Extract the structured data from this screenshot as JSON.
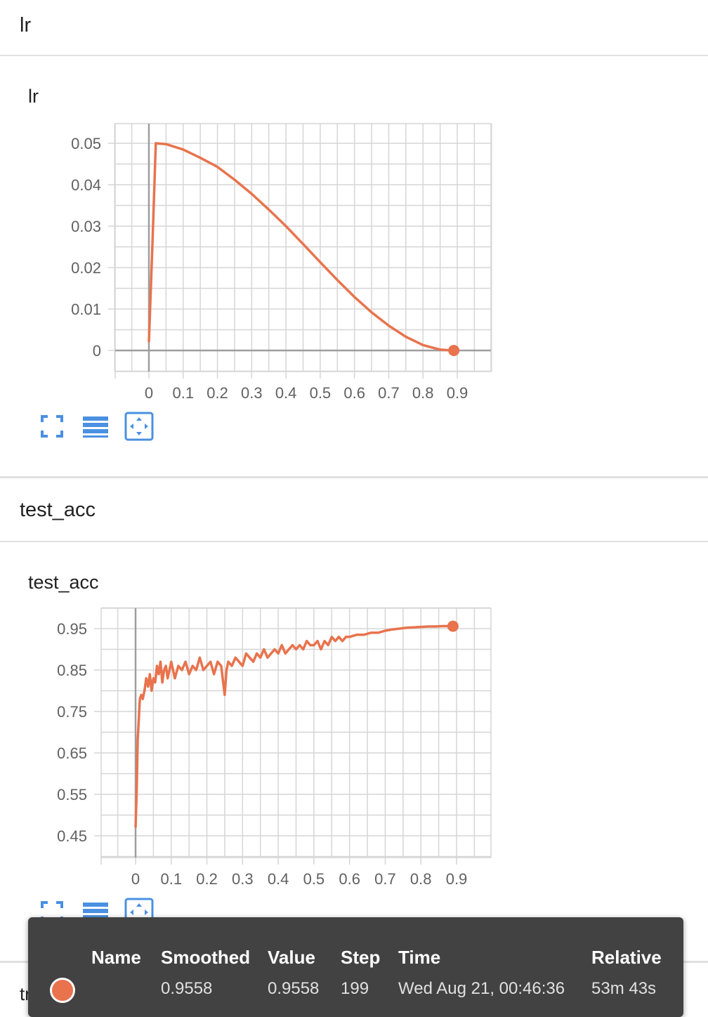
{
  "sections": [
    {
      "header": "lr"
    },
    {
      "header": "test_acc"
    }
  ],
  "next_section_header": "train_acc",
  "colors": {
    "series": "#e8734d",
    "icon": "#4a90e2",
    "grid": "#d6d6d6",
    "axis": "#9e9e9e",
    "tooltip_bg": "#424242"
  },
  "chart_data": [
    {
      "type": "line",
      "title": "lr",
      "xlim": [
        0,
        0.9
      ],
      "ylim": [
        0,
        0.05
      ],
      "x_ticks": [
        0,
        0.1,
        0.2,
        0.3,
        0.4,
        0.5,
        0.6,
        0.7,
        0.8,
        0.9
      ],
      "y_ticks": [
        0,
        0.01,
        0.02,
        0.03,
        0.04,
        0.05
      ],
      "x_tick_labels": [
        "0",
        "0.1",
        "0.2",
        "0.3",
        "0.4",
        "0.5",
        "0.6",
        "0.7",
        "0.8",
        "0.9"
      ],
      "y_tick_labels": [
        "0",
        "0.01",
        "0.02",
        "0.03",
        "0.04",
        "0.05"
      ],
      "grid": true,
      "series": [
        {
          "x": [
            0,
            0.01,
            0.02,
            0.05,
            0.1,
            0.15,
            0.2,
            0.25,
            0.3,
            0.35,
            0.4,
            0.45,
            0.5,
            0.55,
            0.6,
            0.65,
            0.7,
            0.75,
            0.8,
            0.85,
            0.89
          ],
          "y": [
            0.002,
            0.025,
            0.05,
            0.0498,
            0.0485,
            0.0465,
            0.0443,
            0.0412,
            0.0378,
            0.034,
            0.03,
            0.0257,
            0.0213,
            0.017,
            0.0129,
            0.0092,
            0.006,
            0.0033,
            0.0013,
            0.0002,
            0.0
          ]
        }
      ],
      "last_point": {
        "x": 0.89,
        "y": 0.0
      }
    },
    {
      "type": "line",
      "title": "test_acc",
      "xlim": [
        0,
        0.9
      ],
      "ylim": [
        0.45,
        0.95
      ],
      "x_ticks": [
        0,
        0.1,
        0.2,
        0.3,
        0.4,
        0.5,
        0.6,
        0.7,
        0.8,
        0.9
      ],
      "y_ticks": [
        0.45,
        0.55,
        0.65,
        0.75,
        0.85,
        0.95
      ],
      "x_tick_labels": [
        "0",
        "0.1",
        "0.2",
        "0.3",
        "0.4",
        "0.5",
        "0.6",
        "0.7",
        "0.8",
        "0.9"
      ],
      "y_tick_labels": [
        "0.45",
        "0.55",
        "0.65",
        "0.75",
        "0.85",
        "0.95"
      ],
      "grid": true,
      "series": [
        {
          "x": [
            0,
            0.003,
            0.006,
            0.009,
            0.012,
            0.016,
            0.02,
            0.025,
            0.03,
            0.035,
            0.04,
            0.045,
            0.05,
            0.055,
            0.06,
            0.065,
            0.07,
            0.075,
            0.08,
            0.085,
            0.09,
            0.1,
            0.11,
            0.12,
            0.13,
            0.14,
            0.15,
            0.16,
            0.17,
            0.18,
            0.19,
            0.2,
            0.21,
            0.22,
            0.23,
            0.24,
            0.25,
            0.255,
            0.26,
            0.27,
            0.28,
            0.29,
            0.3,
            0.31,
            0.32,
            0.33,
            0.34,
            0.35,
            0.36,
            0.37,
            0.38,
            0.39,
            0.4,
            0.41,
            0.42,
            0.43,
            0.44,
            0.45,
            0.46,
            0.47,
            0.48,
            0.49,
            0.5,
            0.51,
            0.52,
            0.53,
            0.54,
            0.55,
            0.56,
            0.57,
            0.58,
            0.59,
            0.6,
            0.62,
            0.64,
            0.66,
            0.68,
            0.7,
            0.72,
            0.74,
            0.76,
            0.78,
            0.8,
            0.82,
            0.84,
            0.86,
            0.88,
            0.89
          ],
          "y": [
            0.47,
            0.55,
            0.68,
            0.73,
            0.78,
            0.79,
            0.78,
            0.8,
            0.83,
            0.81,
            0.84,
            0.8,
            0.83,
            0.82,
            0.86,
            0.84,
            0.87,
            0.82,
            0.85,
            0.86,
            0.83,
            0.87,
            0.83,
            0.86,
            0.85,
            0.87,
            0.84,
            0.86,
            0.85,
            0.88,
            0.85,
            0.86,
            0.87,
            0.84,
            0.87,
            0.86,
            0.79,
            0.85,
            0.87,
            0.86,
            0.88,
            0.87,
            0.86,
            0.89,
            0.88,
            0.87,
            0.89,
            0.88,
            0.9,
            0.88,
            0.89,
            0.9,
            0.89,
            0.91,
            0.89,
            0.9,
            0.91,
            0.9,
            0.91,
            0.9,
            0.92,
            0.91,
            0.91,
            0.92,
            0.9,
            0.92,
            0.91,
            0.93,
            0.92,
            0.93,
            0.92,
            0.93,
            0.93,
            0.935,
            0.935,
            0.94,
            0.94,
            0.945,
            0.948,
            0.95,
            0.952,
            0.953,
            0.954,
            0.955,
            0.955,
            0.956,
            0.9558,
            0.9558
          ]
        }
      ],
      "last_point": {
        "x": 0.89,
        "y": 0.9558
      }
    }
  ],
  "tooltip": {
    "headers": {
      "name": "Name",
      "smoothed": "Smoothed",
      "value": "Value",
      "step": "Step",
      "time": "Time",
      "relative": "Relative"
    },
    "row": {
      "smoothed": "0.9558",
      "value": "0.9558",
      "step": "199",
      "time": "Wed Aug 21, 00:46:36",
      "relative": "53m 43s"
    }
  },
  "icons": [
    "fullscreen-icon",
    "data-table-icon",
    "fit-domain-icon"
  ]
}
